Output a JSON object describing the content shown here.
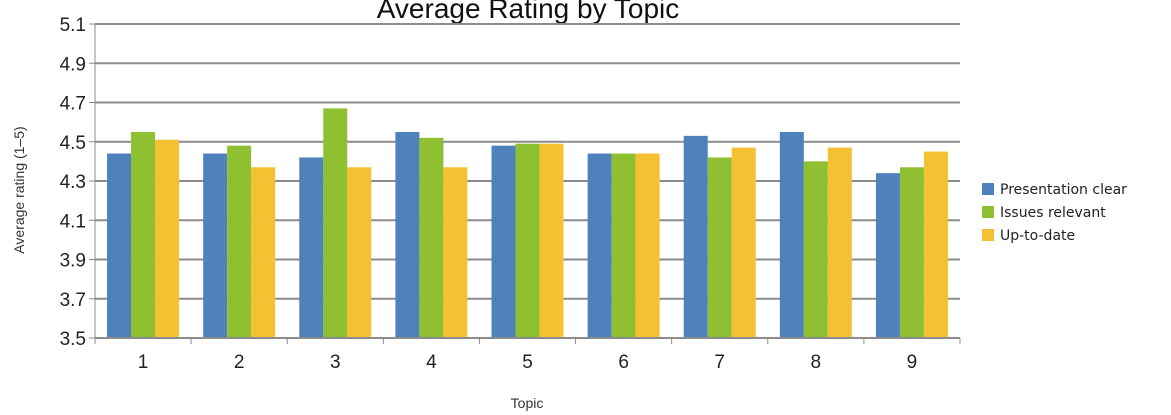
{
  "chart_data": {
    "type": "bar",
    "title": "Average Rating by Topic",
    "xlabel": "Topic",
    "ylabel": "Average rating (1–5)",
    "ylim": [
      3.5,
      5.1
    ],
    "yticks": [
      "3.5",
      "3.7",
      "3.9",
      "4.1",
      "4.3",
      "4.5",
      "4.7",
      "4.9",
      "5.1"
    ],
    "grid": true,
    "legend_position": "right",
    "categories": [
      "1",
      "2",
      "3",
      "4",
      "5",
      "6",
      "7",
      "8",
      "9"
    ],
    "series": [
      {
        "name": "Presentation clear",
        "color": "#4f81bd",
        "values": [
          4.44,
          4.44,
          4.42,
          4.55,
          4.48,
          4.44,
          4.53,
          4.55,
          4.34
        ]
      },
      {
        "name": "Issues relevant",
        "color": "#8fc031",
        "values": [
          4.55,
          4.48,
          4.67,
          4.52,
          4.49,
          4.44,
          4.42,
          4.4,
          4.37
        ]
      },
      {
        "name": "Up-to-date",
        "color": "#f3c132",
        "values": [
          4.51,
          4.37,
          4.37,
          4.37,
          4.49,
          4.44,
          4.47,
          4.47,
          4.45
        ]
      }
    ]
  }
}
